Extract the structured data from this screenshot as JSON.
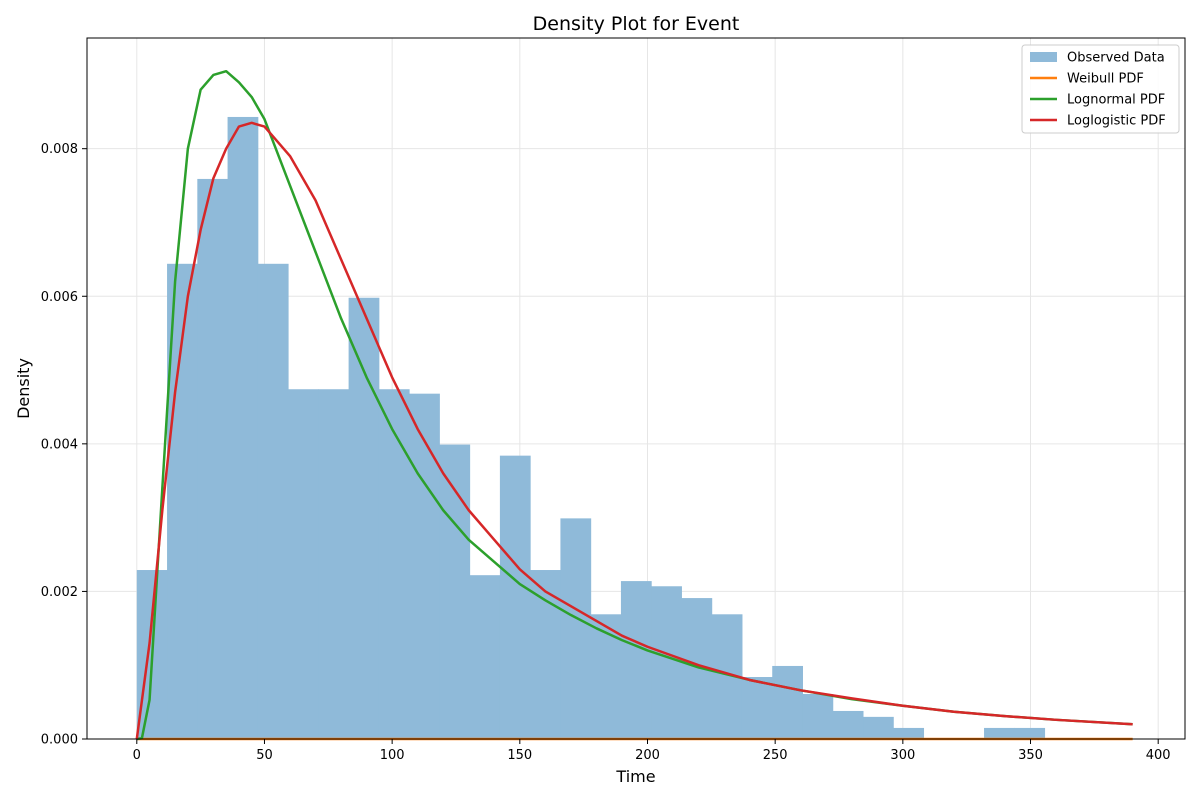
{
  "chart_data": {
    "type": "bar",
    "title": "Density Plot for Event",
    "xlabel": "Time",
    "ylabel": "Density",
    "xlim": [
      -19.5,
      410.5
    ],
    "ylim": [
      0,
      0.0095
    ],
    "xticks": [
      0,
      50,
      100,
      150,
      200,
      250,
      300,
      350,
      400
    ],
    "yticks": [
      0.0,
      0.002,
      0.004,
      0.006,
      0.008
    ],
    "ytick_labels": [
      "0.000",
      "0.002",
      "0.004",
      "0.006",
      "0.008"
    ],
    "grid": true,
    "legend_position": "top-right",
    "histogram": {
      "name": "Observed Data",
      "color": "#8fbad9",
      "bin_start": 0,
      "bin_width": 11.85,
      "values": [
        0.00229,
        0.00644,
        0.00759,
        0.00843,
        0.00644,
        0.00474,
        0.00474,
        0.00598,
        0.00474,
        0.00468,
        0.00399,
        0.00222,
        0.00384,
        0.00229,
        0.00299,
        0.00169,
        0.00214,
        0.00207,
        0.00191,
        0.00169,
        0.00084,
        0.00099,
        0.00061,
        0.00038,
        0.0003,
        0.00015,
        0,
        0,
        0.00015,
        0.00015
      ]
    },
    "series": [
      {
        "name": "Weibull PDF",
        "color": "#ff7f0e",
        "x": [
          0,
          390
        ],
        "y": [
          0,
          0
        ]
      },
      {
        "name": "Lognormal PDF",
        "color": "#2ca02c",
        "x": [
          0,
          2,
          5,
          10,
          15,
          20,
          25,
          30,
          35,
          40,
          45,
          50,
          60,
          70,
          80,
          90,
          100,
          110,
          120,
          130,
          140,
          150,
          160,
          170,
          180,
          190,
          200,
          220,
          240,
          260,
          280,
          300,
          320,
          340,
          360,
          390
        ],
        "y": [
          0,
          1e-05,
          0.00053,
          0.0034,
          0.0062,
          0.008,
          0.0088,
          0.009,
          0.00905,
          0.0089,
          0.0087,
          0.0084,
          0.0075,
          0.0066,
          0.0057,
          0.0049,
          0.0042,
          0.0036,
          0.0031,
          0.0027,
          0.0024,
          0.0021,
          0.00188,
          0.00168,
          0.0015,
          0.00134,
          0.0012,
          0.00097,
          0.0008,
          0.00066,
          0.00054,
          0.00045,
          0.00037,
          0.00031,
          0.00026,
          0.0002
        ]
      },
      {
        "name": "Loglogistic PDF",
        "color": "#d62728",
        "x": [
          0,
          5,
          10,
          15,
          20,
          25,
          30,
          35,
          40,
          45,
          50,
          60,
          70,
          80,
          90,
          100,
          110,
          120,
          130,
          140,
          150,
          160,
          170,
          180,
          190,
          200,
          220,
          240,
          260,
          280,
          300,
          320,
          340,
          360,
          390
        ],
        "y": [
          0,
          0.0013,
          0.0031,
          0.0047,
          0.006,
          0.0069,
          0.0076,
          0.008,
          0.0083,
          0.00835,
          0.0083,
          0.0079,
          0.0073,
          0.0065,
          0.0057,
          0.0049,
          0.0042,
          0.0036,
          0.0031,
          0.0027,
          0.0023,
          0.002,
          0.0018,
          0.0016,
          0.0014,
          0.00125,
          0.001,
          0.0008,
          0.00066,
          0.00055,
          0.00045,
          0.00037,
          0.00031,
          0.00026,
          0.0002
        ]
      }
    ]
  }
}
